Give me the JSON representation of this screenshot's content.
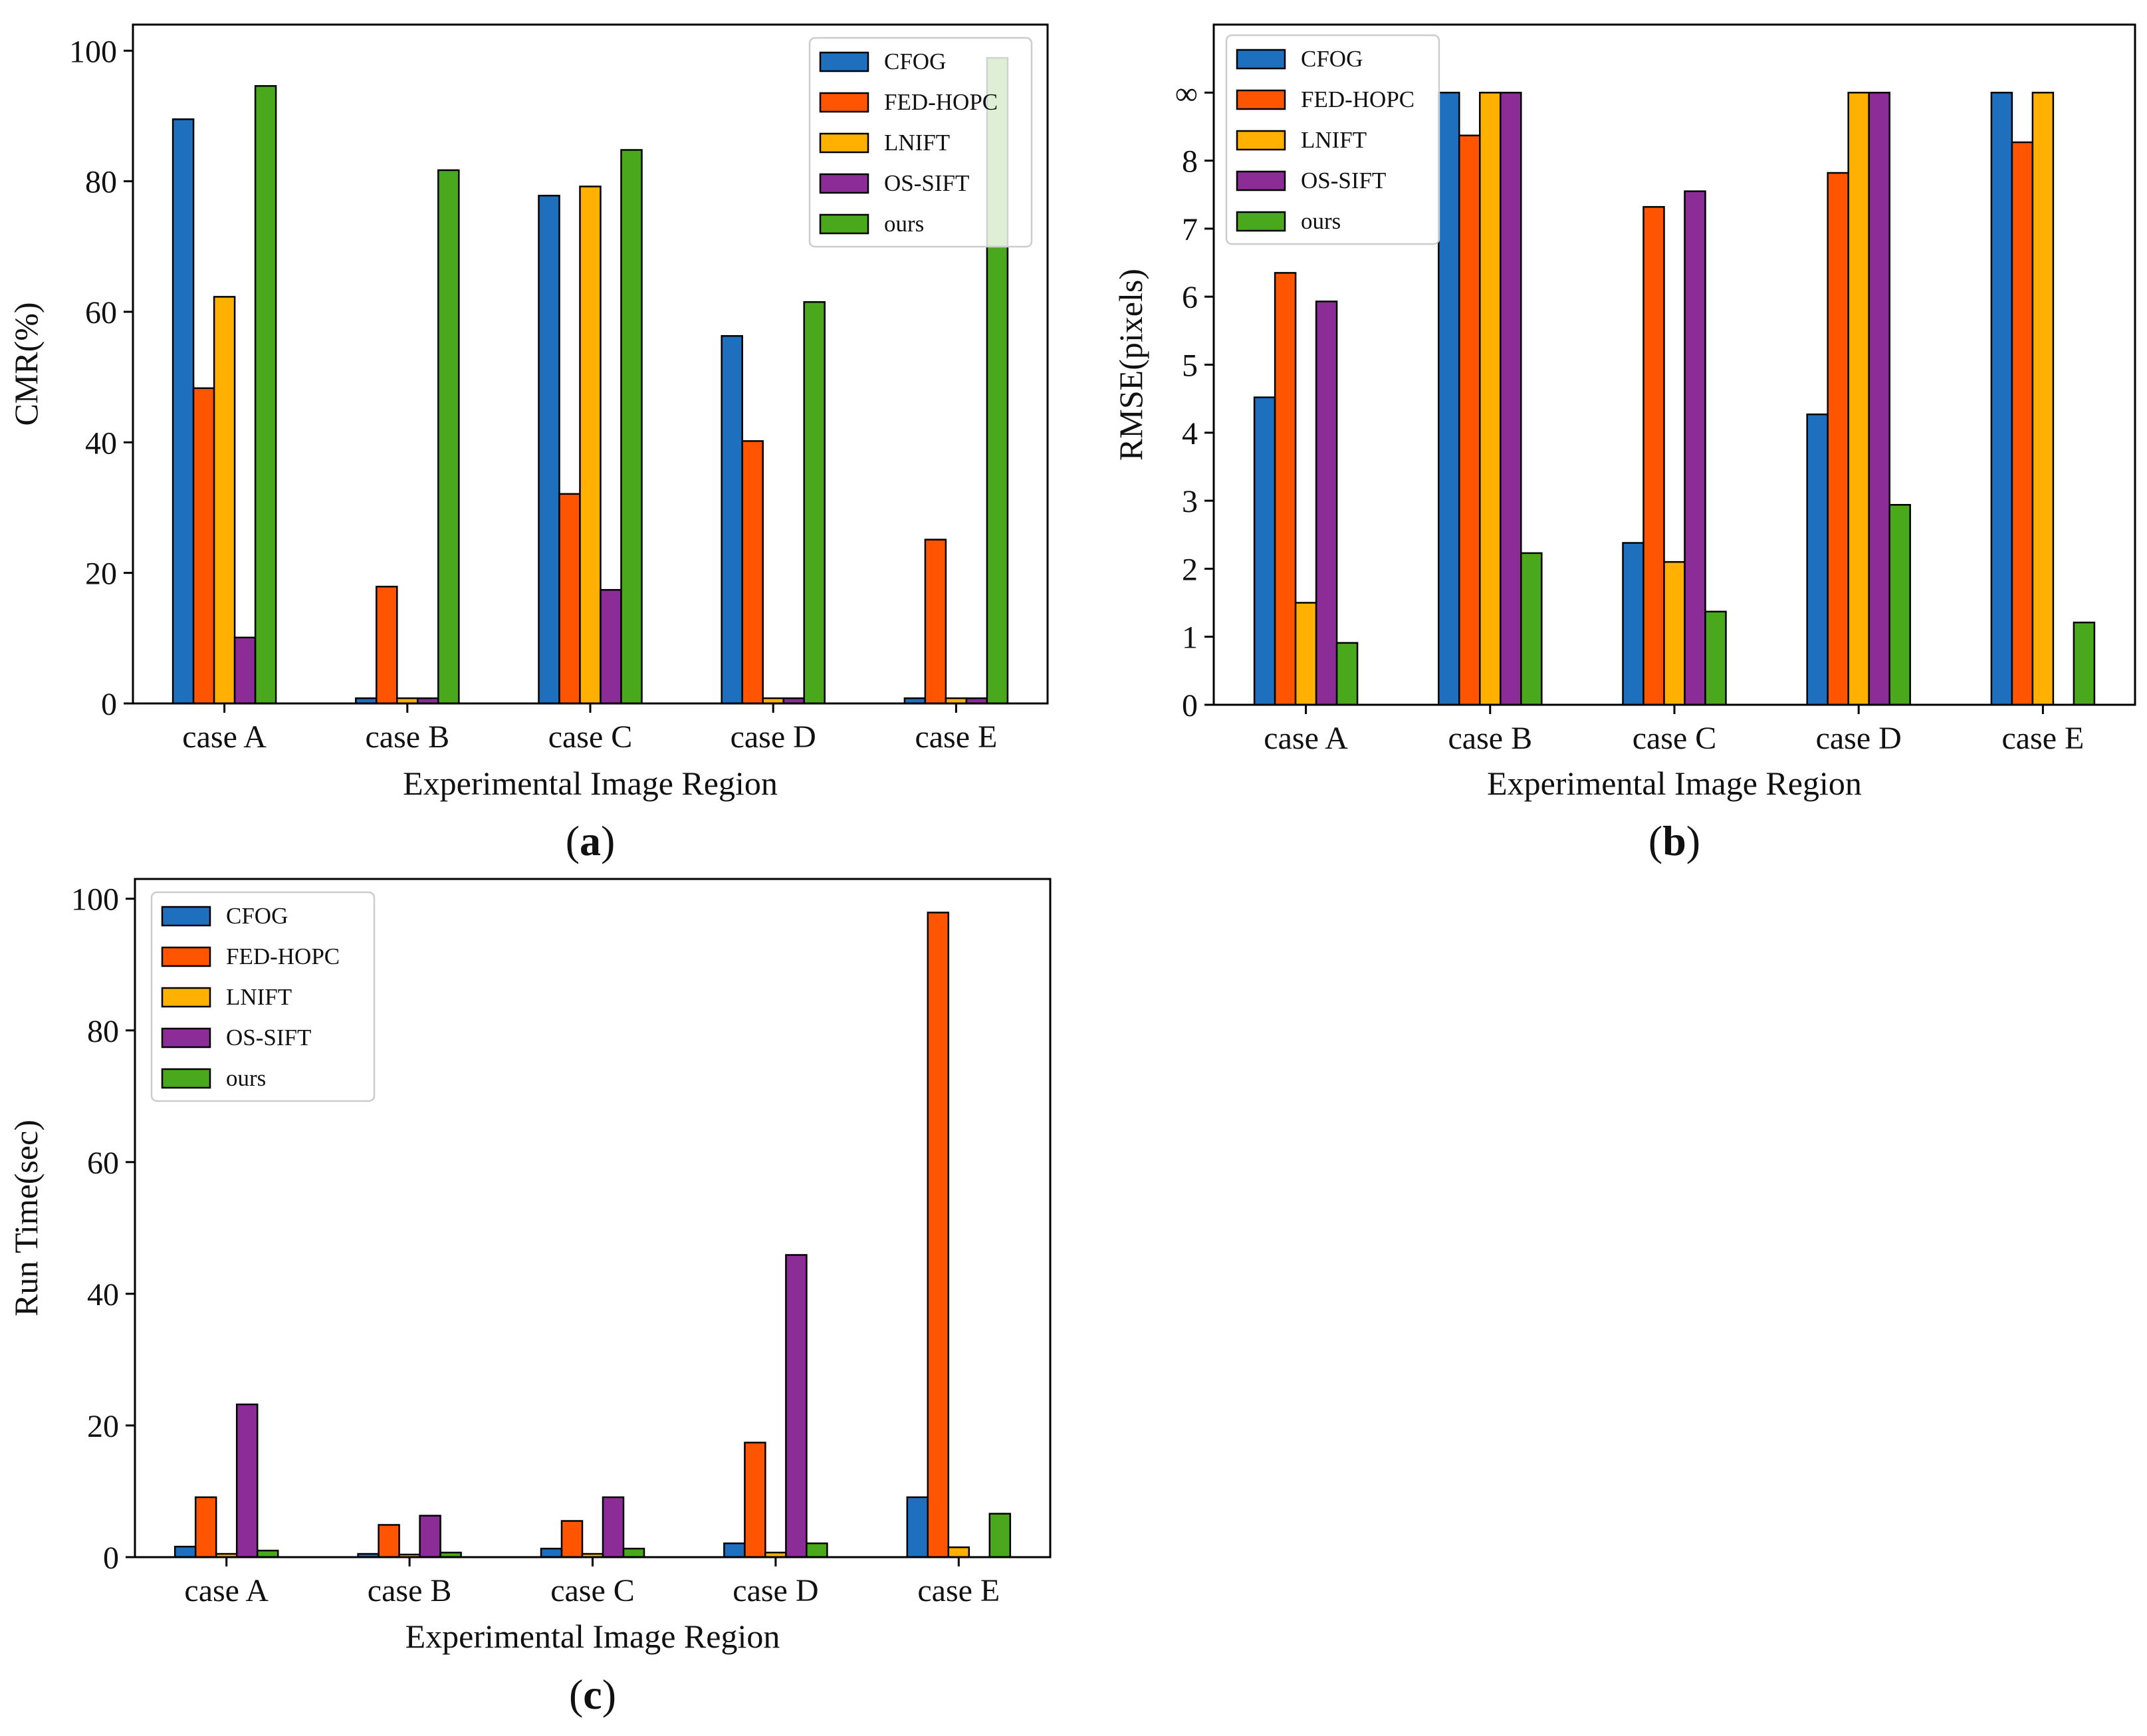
{
  "series_colors": {
    "CFOG": "#1f6fbf",
    "FED-HOPC": "#ff5500",
    "LNIFT": "#ffb000",
    "OS-SIFT": "#8c2c96",
    "ours": "#4aa81c"
  },
  "chart_data": [
    {
      "id": "a",
      "type": "bar",
      "panel_label": {
        "open": "(",
        "letter": "a",
        "close": ")"
      },
      "categories": [
        "case A",
        "case B",
        "case C",
        "case D",
        "case E"
      ],
      "xlabel": "Experimental Image Region",
      "ylabel": "CMR(%)",
      "ylim": [
        0,
        104
      ],
      "yticks": [
        0,
        20,
        40,
        60,
        80,
        100
      ],
      "ytick_labels": [
        "0",
        "20",
        "40",
        "60",
        "80",
        "100"
      ],
      "legend_position": "top-right",
      "series": [
        {
          "name": "CFOG",
          "values": [
            89.5,
            0.8,
            77.8,
            56.3,
            0.8
          ]
        },
        {
          "name": "FED-HOPC",
          "values": [
            48.3,
            17.9,
            32.1,
            40.2,
            25.1
          ]
        },
        {
          "name": "LNIFT",
          "values": [
            62.3,
            0.8,
            79.2,
            0.8,
            0.8
          ]
        },
        {
          "name": "OS-SIFT",
          "values": [
            10.1,
            0.8,
            17.4,
            0.8,
            0.8
          ]
        },
        {
          "name": "ours",
          "values": [
            94.6,
            81.7,
            84.8,
            61.5,
            98.9
          ]
        }
      ]
    },
    {
      "id": "b",
      "type": "bar",
      "panel_label": {
        "open": "(",
        "letter": "b",
        "close": ")"
      },
      "categories": [
        "case A",
        "case B",
        "case C",
        "case D",
        "case E"
      ],
      "xlabel": "Experimental Image Region",
      "ylabel": "RMSE(pixels)",
      "ylim": [
        0,
        10
      ],
      "yticks": [
        0,
        1,
        2,
        3,
        4,
        5,
        6,
        7,
        8,
        9
      ],
      "ytick_labels": [
        "0",
        "1",
        "2",
        "3",
        "4",
        "5",
        "6",
        "7",
        "8",
        "∞"
      ],
      "legend_position": "top-left",
      "series": [
        {
          "name": "CFOG",
          "values": [
            4.52,
            9,
            2.38,
            4.27,
            9
          ]
        },
        {
          "name": "FED-HOPC",
          "values": [
            6.35,
            8.37,
            7.32,
            7.82,
            8.27
          ]
        },
        {
          "name": "LNIFT",
          "values": [
            1.5,
            9,
            2.1,
            9,
            9
          ]
        },
        {
          "name": "OS-SIFT",
          "values": [
            5.93,
            9,
            7.55,
            9,
            0
          ]
        },
        {
          "name": "ours",
          "values": [
            0.91,
            2.23,
            1.37,
            2.94,
            1.21
          ]
        }
      ]
    },
    {
      "id": "c",
      "type": "bar",
      "panel_label": {
        "open": "(",
        "letter": "c",
        "close": ")"
      },
      "categories": [
        "case A",
        "case B",
        "case C",
        "case D",
        "case E"
      ],
      "xlabel": "Experimental Image Region",
      "ylabel": "Run Time(sec)",
      "ylim": [
        0,
        103
      ],
      "yticks": [
        0,
        20,
        40,
        60,
        80,
        100
      ],
      "ytick_labels": [
        "0",
        "20",
        "40",
        "60",
        "80",
        "100"
      ],
      "legend_position": "top-left",
      "series": [
        {
          "name": "CFOG",
          "values": [
            1.6,
            0.5,
            1.3,
            2.1,
            9.1
          ]
        },
        {
          "name": "FED-HOPC",
          "values": [
            9.1,
            4.9,
            5.5,
            17.4,
            97.9
          ]
        },
        {
          "name": "LNIFT",
          "values": [
            0.5,
            0.4,
            0.5,
            0.7,
            1.5
          ]
        },
        {
          "name": "OS-SIFT",
          "values": [
            23.2,
            6.3,
            9.1,
            45.9,
            0
          ]
        },
        {
          "name": "ours",
          "values": [
            1.0,
            0.7,
            1.3,
            2.1,
            6.6
          ]
        }
      ]
    }
  ]
}
